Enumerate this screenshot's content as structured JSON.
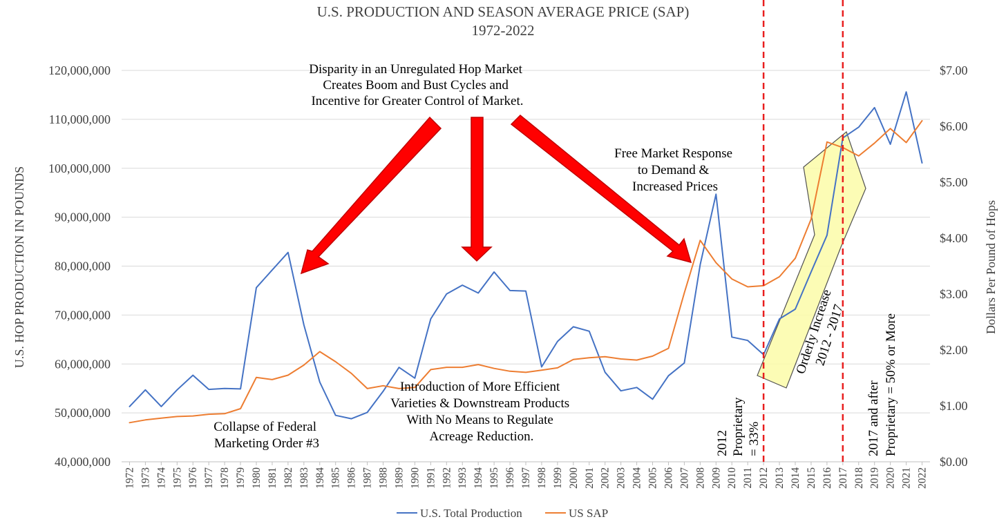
{
  "chart_data": {
    "type": "line",
    "title": "U.S. PRODUCTION AND SEASON AVERAGE PRICE (SAP)",
    "subtitle": "1972-2022",
    "ylabel": "U.S. HOP PRODUCTION IN POUNDS",
    "y2label": "Dollars Per Pound of Hops",
    "ylim": [
      40000000,
      120000000
    ],
    "y2lim": [
      0,
      7
    ],
    "grid": true,
    "legend_position": "bottom",
    "yticks": [
      "40,000,000",
      "50,000,000",
      "60,000,000",
      "70,000,000",
      "80,000,000",
      "90,000,000",
      "100,000,000",
      "110,000,000",
      "120,000,000"
    ],
    "y2ticks": [
      "$0.00",
      "$1.00",
      "$2.00",
      "$3.00",
      "$4.00",
      "$5.00",
      "$6.00",
      "$7.00"
    ],
    "x": [
      "1972",
      "1973",
      "1974",
      "1975",
      "1976",
      "1977",
      "1978",
      "1979",
      "1980",
      "1981",
      "1982",
      "1983",
      "1984",
      "1985",
      "1986",
      "1987",
      "1988",
      "1989",
      "1990",
      "1991",
      "1992",
      "1993",
      "1994",
      "1995",
      "1996",
      "1997",
      "1998",
      "1999",
      "2000",
      "2001",
      "2002",
      "2003",
      "2004",
      "2005",
      "2006",
      "2007",
      "2008",
      "2009",
      "2010",
      "2011",
      "2012",
      "2013",
      "2014",
      "2015",
      "2016",
      "2017",
      "2018",
      "2019",
      "2020",
      "2021",
      "2022"
    ],
    "series": [
      {
        "name": "U.S. Total Production",
        "axis": "left",
        "color": "#4472c4",
        "values": [
          51300000,
          54700000,
          51300000,
          54700000,
          57700000,
          54800000,
          55000000,
          54900000,
          75600000,
          79200000,
          82800000,
          68000000,
          56300000,
          49500000,
          48800000,
          50100000,
          54400000,
          59300000,
          57100000,
          69200000,
          74300000,
          76100000,
          74500000,
          78800000,
          75000000,
          74900000,
          59400000,
          64600000,
          67600000,
          66700000,
          58300000,
          54500000,
          55200000,
          52800000,
          57600000,
          60200000,
          80300000,
          94700000,
          65500000,
          64800000,
          61900000,
          69200000,
          71200000,
          78800000,
          86300000,
          106200000,
          108400000,
          112400000,
          104900000,
          115600000,
          101100000
        ]
      },
      {
        "name": "US SAP",
        "axis": "right",
        "color": "#ed7d31",
        "values": [
          0.7,
          0.75,
          0.78,
          0.81,
          0.82,
          0.85,
          0.86,
          0.95,
          1.51,
          1.47,
          1.55,
          1.73,
          1.97,
          1.79,
          1.58,
          1.31,
          1.36,
          1.31,
          1.33,
          1.65,
          1.69,
          1.69,
          1.74,
          1.67,
          1.62,
          1.6,
          1.64,
          1.68,
          1.83,
          1.86,
          1.88,
          1.84,
          1.82,
          1.89,
          2.03,
          3.02,
          3.96,
          3.56,
          3.27,
          3.13,
          3.15,
          3.31,
          3.64,
          4.34,
          5.72,
          5.62,
          5.47,
          5.7,
          5.96,
          5.71,
          6.1
        ]
      }
    ],
    "markers": [
      {
        "x": "2012",
        "style": "dashed",
        "color": "#e81e1e"
      },
      {
        "x": "2017",
        "style": "dashed",
        "color": "#e81e1e"
      }
    ],
    "annotations": {
      "disparity": [
        "Disparity in an Unregulated Hop Market",
        "Creates Boom and Bust Cycles and",
        "Incentive for Greater Control of Market."
      ],
      "free_market": [
        "Free Market Response",
        "to Demand &",
        "Increased Prices"
      ],
      "introduction": [
        "Introduction of More Efficient",
        "Varieties & Downstream Products",
        "With No Means to Regulate",
        "Acreage Reduction."
      ],
      "collapse": [
        "Collapse of Federal",
        "Marketing Order #3"
      ],
      "proprietary_2012": [
        "2012",
        "Proprietary",
        "= 33%"
      ],
      "orderly": [
        "Orderly Increase",
        "2012 - 2017"
      ],
      "proprietary_2017": [
        "2017 and after",
        "Proprietary = 50% or More"
      ]
    }
  }
}
